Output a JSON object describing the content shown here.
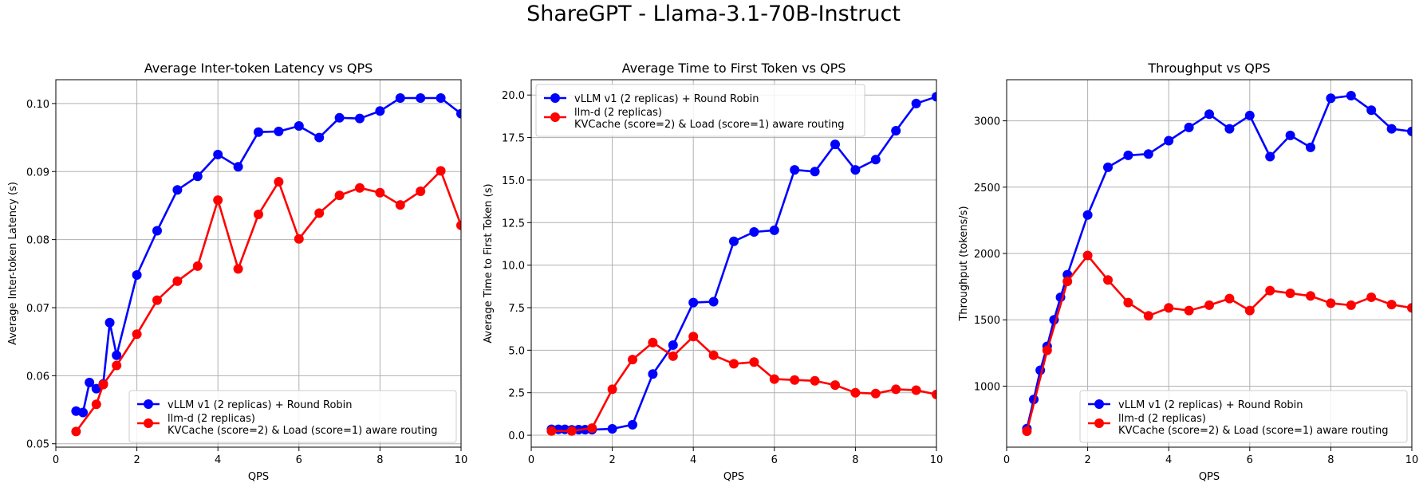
{
  "figure": {
    "suptitle": "ShareGPT - Llama-3.1-70B-Instruct"
  },
  "colors": {
    "vllm": "#0000ff",
    "llmd": "#ff0000",
    "grid": "#b0b0b0"
  },
  "chart_data": [
    {
      "type": "line",
      "title": "Average Inter-token Latency vs QPS",
      "xlabel": "QPS",
      "ylabel": "Average Inter-token Latency (s)",
      "xlim": [
        0,
        10
      ],
      "ylim": [
        0.0495,
        0.1035
      ],
      "xticks": [
        0,
        2,
        4,
        6,
        8,
        10
      ],
      "yticks": [
        0.05,
        0.06,
        0.07,
        0.08,
        0.09,
        0.1
      ],
      "ytick_labels": [
        "0.05",
        "0.06",
        "0.07",
        "0.08",
        "0.09",
        "0.10"
      ],
      "grid": true,
      "legend_position": "lower-right",
      "series": [
        {
          "name": "vLLM v1 (2 replicas) + Round Robin",
          "color": "#0000ff",
          "x": [
            0.5,
            0.67,
            0.83,
            1.0,
            1.17,
            1.33,
            1.5,
            2.0,
            2.5,
            3.0,
            3.5,
            4.0,
            4.5,
            5.0,
            5.5,
            6.0,
            6.5,
            7.0,
            7.5,
            8.0,
            8.5,
            9.0,
            9.5,
            10.0
          ],
          "y": [
            0.0548,
            0.0546,
            0.059,
            0.0581,
            0.0588,
            0.0678,
            0.063,
            0.0748,
            0.0813,
            0.0873,
            0.0893,
            0.0925,
            0.0907,
            0.0958,
            0.0959,
            0.0967,
            0.095,
            0.0979,
            0.0978,
            0.0989,
            0.1008,
            0.1008,
            0.1008,
            0.0985
          ]
        },
        {
          "name": "llm-d (2 replicas)\nKVCache (score=2) & Load (score=1) aware routing",
          "color": "#ff0000",
          "x": [
            0.5,
            1.0,
            1.17,
            1.5,
            2.0,
            2.5,
            3.0,
            3.5,
            4.0,
            4.5,
            5.0,
            5.5,
            6.0,
            6.5,
            7.0,
            7.5,
            8.0,
            8.5,
            9.0,
            9.5,
            10.0
          ],
          "y": [
            0.0518,
            0.0558,
            0.0587,
            0.0615,
            0.0661,
            0.0711,
            0.0739,
            0.0761,
            0.0858,
            0.0757,
            0.0837,
            0.0885,
            0.0801,
            0.0839,
            0.0865,
            0.0876,
            0.0869,
            0.0851,
            0.0871,
            0.0901,
            0.0821
          ]
        }
      ]
    },
    {
      "type": "line",
      "title": "Average Time to First Token vs QPS",
      "xlabel": "QPS",
      "ylabel": "Average Time to First Token (s)",
      "xlim": [
        0,
        10
      ],
      "ylim": [
        -0.7,
        20.9
      ],
      "xticks": [
        0,
        2,
        4,
        6,
        8,
        10
      ],
      "yticks": [
        0,
        2.5,
        5,
        7.5,
        10,
        12.5,
        15,
        17.5,
        20
      ],
      "ytick_labels": [
        "0.0",
        "2.5",
        "5.0",
        "7.5",
        "10.0",
        "12.5",
        "15.0",
        "17.5",
        "20.0"
      ],
      "grid": true,
      "legend_position": "upper-left",
      "series": [
        {
          "name": "vLLM v1 (2 replicas) + Round Robin",
          "color": "#0000ff",
          "x": [
            0.5,
            0.67,
            0.83,
            1.0,
            1.17,
            1.33,
            1.5,
            2.0,
            2.5,
            3.0,
            3.5,
            4.0,
            4.5,
            5.0,
            5.5,
            6.0,
            6.5,
            7.0,
            7.5,
            8.0,
            8.5,
            9.0,
            9.5,
            10.0
          ],
          "y": [
            0.35,
            0.35,
            0.35,
            0.32,
            0.33,
            0.33,
            0.33,
            0.38,
            0.62,
            3.6,
            5.3,
            7.8,
            7.85,
            11.4,
            11.95,
            12.05,
            15.6,
            15.5,
            17.1,
            15.6,
            16.2,
            17.9,
            19.5,
            19.9
          ]
        },
        {
          "name": "llm-d (2 replicas)\nKVCache (score=2) & Load (score=1) aware routing",
          "color": "#ff0000",
          "x": [
            0.5,
            1.0,
            1.5,
            2.0,
            2.5,
            3.0,
            3.5,
            4.0,
            4.5,
            5.0,
            5.5,
            6.0,
            6.5,
            7.0,
            7.5,
            8.0,
            8.5,
            9.0,
            9.5,
            10.0
          ],
          "y": [
            0.25,
            0.25,
            0.42,
            2.7,
            4.45,
            5.45,
            4.65,
            5.8,
            4.7,
            4.2,
            4.3,
            3.3,
            3.25,
            3.2,
            2.95,
            2.5,
            2.45,
            2.7,
            2.65,
            2.4
          ]
        }
      ]
    },
    {
      "type": "line",
      "title": "Throughput vs QPS",
      "xlabel": "QPS",
      "ylabel": "Throughput (tokens/s)",
      "xlim": [
        0,
        10
      ],
      "ylim": [
        540,
        3310
      ],
      "xticks": [
        0,
        2,
        4,
        6,
        8,
        10
      ],
      "yticks": [
        1000,
        1500,
        2000,
        2500,
        3000
      ],
      "ytick_labels": [
        "1000",
        "1500",
        "2000",
        "2500",
        "3000"
      ],
      "grid": true,
      "legend_position": "lower-right",
      "series": [
        {
          "name": "vLLM v1 (2 replicas) + Round Robin",
          "color": "#0000ff",
          "x": [
            0.5,
            0.67,
            0.83,
            1.0,
            1.17,
            1.33,
            1.5,
            2.0,
            2.5,
            3.0,
            3.5,
            4.0,
            4.5,
            5.0,
            5.5,
            6.0,
            6.5,
            7.0,
            7.5,
            8.0,
            8.5,
            9.0,
            9.5,
            10.0
          ],
          "y": [
            680,
            900,
            1120,
            1300,
            1500,
            1670,
            1840,
            2290,
            2650,
            2740,
            2750,
            2850,
            2950,
            3050,
            2940,
            3040,
            2730,
            2890,
            2800,
            3170,
            3190,
            3080,
            2940,
            2920
          ]
        },
        {
          "name": "llm-d (2 replicas)\nKVCache (score=2) & Load (score=1) aware routing",
          "color": "#ff0000",
          "x": [
            0.5,
            1.0,
            1.5,
            2.0,
            2.5,
            3.0,
            3.5,
            4.0,
            4.5,
            5.0,
            5.5,
            6.0,
            6.5,
            7.0,
            7.5,
            8.0,
            8.5,
            9.0,
            9.5,
            10.0
          ],
          "y": [
            660,
            1270,
            1790,
            1985,
            1800,
            1630,
            1530,
            1590,
            1570,
            1610,
            1660,
            1570,
            1720,
            1700,
            1680,
            1625,
            1610,
            1670,
            1615,
            1590
          ]
        }
      ]
    }
  ]
}
